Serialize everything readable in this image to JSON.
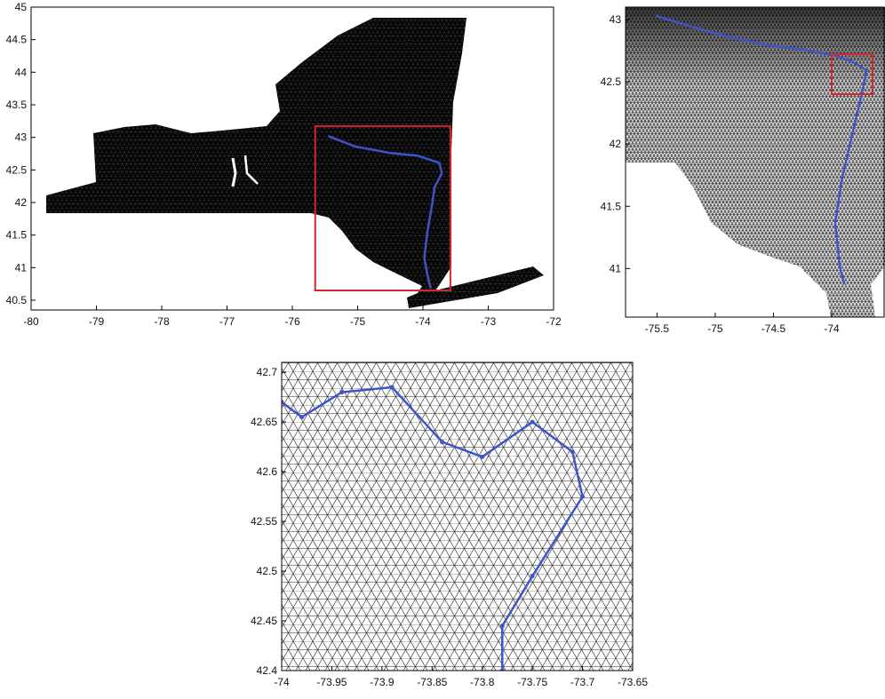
{
  "chart_data": [
    {
      "type": "line",
      "xlim": [
        -80,
        -72
      ],
      "ylim": [
        40.35,
        45
      ],
      "xticks": [
        -80,
        -79,
        -78,
        -77,
        -76,
        -75,
        -74,
        -73,
        -72
      ],
      "yticks": [
        40.5,
        41,
        41.5,
        42,
        42.5,
        43,
        43.5,
        44,
        44.5,
        45
      ],
      "series": [
        {
          "color": "#3d55c8",
          "x": [
            -75.45,
            -75.04,
            -74.5,
            -74.09,
            -73.75,
            -73.71,
            -73.82,
            -73.86,
            -73.93,
            -73.98,
            -73.93,
            -73.88
          ],
          "values": [
            43.02,
            42.86,
            42.76,
            42.72,
            42.61,
            42.45,
            42.24,
            41.97,
            41.56,
            41.15,
            40.88,
            40.68
          ]
        }
      ],
      "box": {
        "xlim": [
          -75.65,
          -73.58
        ],
        "ylim": [
          40.65,
          43.17
        ],
        "color": "#d0282e"
      }
    },
    {
      "type": "line",
      "xlim": [
        -75.77,
        -73.55
      ],
      "ylim": [
        40.61,
        43.1
      ],
      "xticks": [
        -75.5,
        -75,
        -74.5,
        -74
      ],
      "yticks": [
        41,
        41.5,
        42,
        42.5,
        43
      ],
      "series": [
        {
          "color": "#3d55c8",
          "x": [
            -75.51,
            -75.19,
            -74.89,
            -74.58,
            -74.27,
            -73.97,
            -73.82,
            -73.7,
            -73.74,
            -73.82,
            -73.91,
            -73.97,
            -73.93,
            -73.89
          ],
          "values": [
            43.03,
            42.94,
            42.86,
            42.8,
            42.76,
            42.71,
            42.66,
            42.59,
            42.41,
            42.09,
            41.73,
            41.37,
            41.01,
            40.87
          ]
        }
      ],
      "box": {
        "xlim": [
          -74,
          -73.65
        ],
        "ylim": [
          42.4,
          42.72
        ],
        "color": "#d0282e"
      }
    },
    {
      "type": "line",
      "xlim": [
        -74,
        -73.65
      ],
      "ylim": [
        42.4,
        42.71
      ],
      "xticks": [
        -74,
        -73.95,
        -73.9,
        -73.85,
        -73.8,
        -73.75,
        -73.7,
        -73.65
      ],
      "yticks": [
        42.4,
        42.45,
        42.5,
        42.55,
        42.6,
        42.65,
        42.7
      ],
      "series": [
        {
          "color": "#3d55c8",
          "x": [
            -74,
            -73.98,
            -73.94,
            -73.89,
            -73.84,
            -73.8,
            -73.75,
            -73.71,
            -73.7,
            -73.75,
            -73.78,
            -73.78
          ],
          "values": [
            42.67,
            42.655,
            42.68,
            42.685,
            42.63,
            42.615,
            42.65,
            42.62,
            42.575,
            42.495,
            42.445,
            42.4
          ]
        }
      ],
      "markers": true
    }
  ]
}
